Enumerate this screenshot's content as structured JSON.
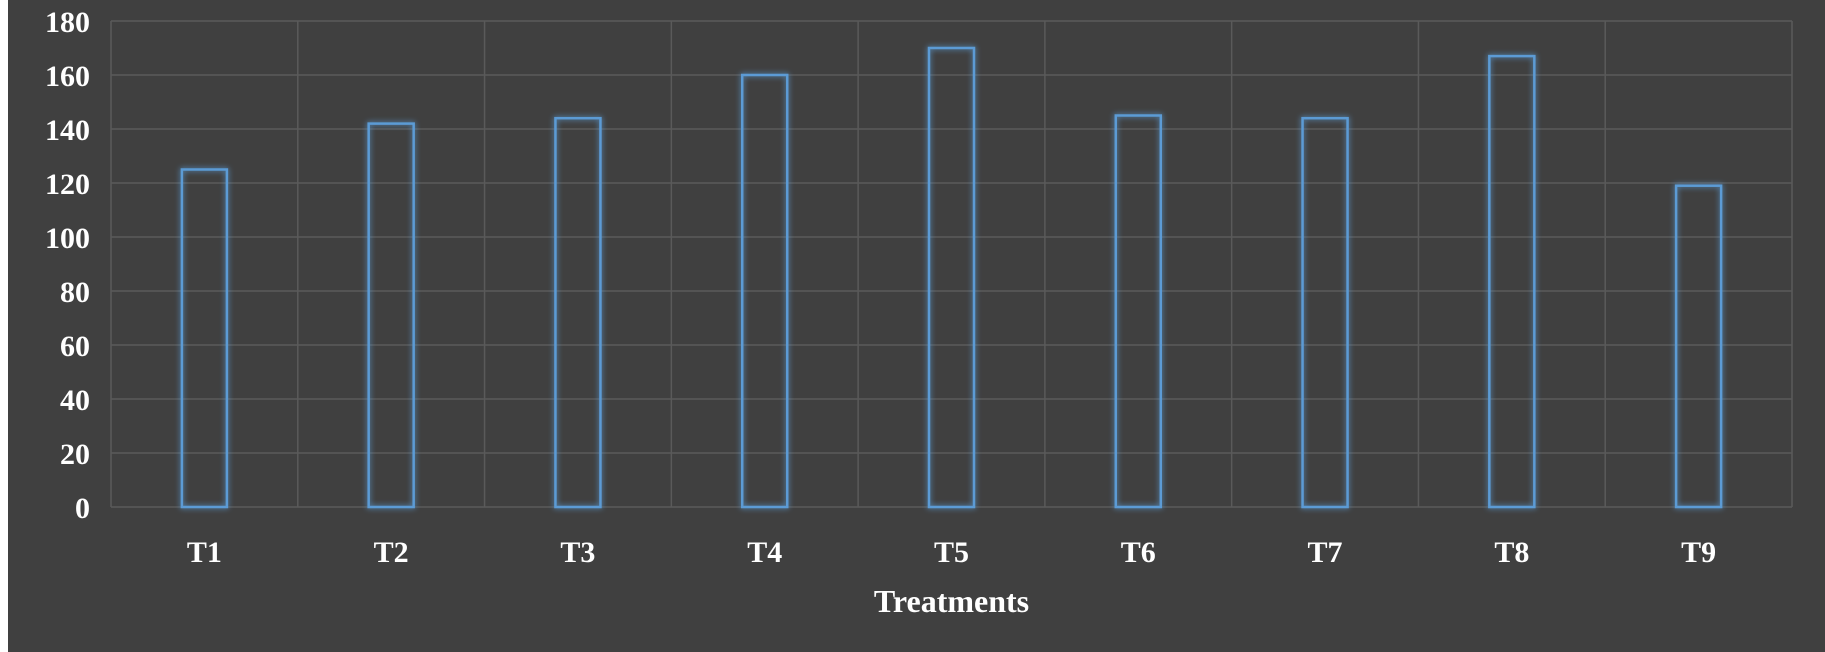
{
  "chart_data": {
    "type": "bar",
    "categories": [
      "T1",
      "T2",
      "T3",
      "T4",
      "T5",
      "T6",
      "T7",
      "T8",
      "T9"
    ],
    "values": [
      125,
      142,
      144,
      160,
      170,
      145,
      144,
      167,
      119
    ],
    "title": "",
    "xlabel": "Treatments",
    "ylabel": "",
    "ylim": [
      0,
      180
    ],
    "yticks": [
      0,
      20,
      40,
      60,
      80,
      100,
      120,
      140,
      160,
      180
    ],
    "grid": true,
    "colors": {
      "background": "#404040",
      "bar_outline": "#5b9bd5",
      "grid": "#5a5a5a",
      "text": "#ffffff"
    }
  }
}
